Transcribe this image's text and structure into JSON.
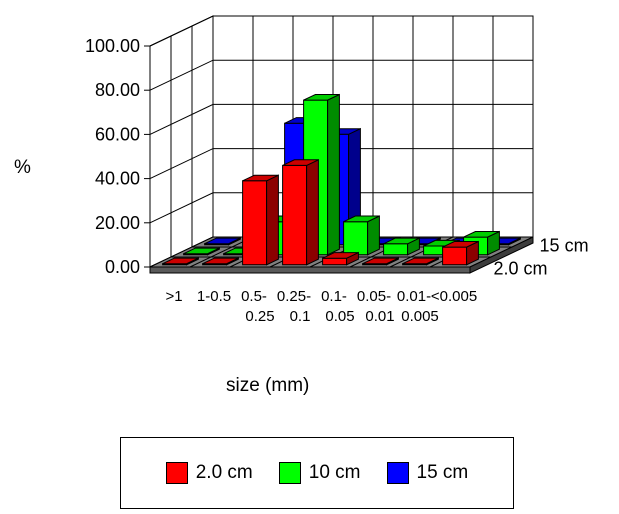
{
  "chart_data": {
    "type": "bar",
    "title": "",
    "xlabel": "size (mm)",
    "ylabel": "%",
    "ylim": [
      0,
      100
    ],
    "yticks": [
      "0.00",
      "20.00",
      "40.00",
      "60.00",
      "80.00",
      "100.00"
    ],
    "categories": [
      [
        ">1"
      ],
      [
        "1-0.5"
      ],
      [
        "0.5-",
        "0.25"
      ],
      [
        "0.25-",
        "0.1"
      ],
      [
        "0.1-",
        "0.05"
      ],
      [
        "0.05-",
        "0.01"
      ],
      [
        "0.01-",
        "0.005"
      ],
      [
        "<0.005"
      ]
    ],
    "depth_labels": [
      "2.0 cm",
      "15 cm"
    ],
    "grid": true,
    "legend_position": "bottom",
    "series": [
      {
        "name": "2.0 cm",
        "color": "#ff0000",
        "values": [
          0.5,
          0.5,
          38,
          45,
          3,
          0.5,
          0.5,
          8
        ]
      },
      {
        "name": "10 cm",
        "color": "#00ff00",
        "values": [
          0.5,
          0.5,
          15,
          70,
          15,
          5,
          4,
          8
        ]
      },
      {
        "name": "15 cm",
        "color": "#0000ff",
        "values": [
          0.5,
          0.5,
          55,
          50,
          0.5,
          0.5,
          0.5,
          0.5
        ]
      }
    ]
  }
}
